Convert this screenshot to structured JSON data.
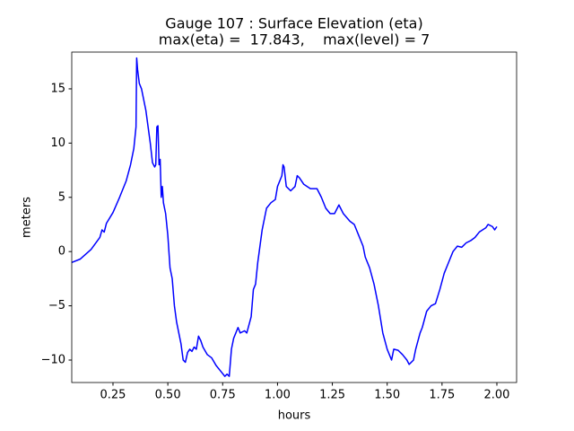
{
  "chart_data": {
    "type": "line",
    "title": "Gauge 107 : Surface Elevation (eta)",
    "subtitle": "max(eta) =  17.843,    max(level) = 7",
    "xlabel": "hours",
    "ylabel": "meters",
    "color": "#0000ff",
    "xlim": [
      0.062,
      2.09
    ],
    "ylim": [
      -12.07,
      18.39
    ],
    "xticks": [
      0.25,
      {
        "value": 0.5,
        "label": "0.50"
      },
      0.75,
      {
        "value": 1.0,
        "label": "1.00"
      },
      1.25,
      {
        "value": 1.5,
        "label": "1.50"
      },
      1.75,
      {
        "value": 2.0,
        "label": "2.00"
      }
    ],
    "yticks": [
      {
        "value": -10,
        "label": "−10"
      },
      {
        "value": -5,
        "label": "−5"
      },
      0,
      5,
      10,
      15
    ],
    "x": [
      0.062,
      0.1,
      0.15,
      0.19,
      0.2,
      0.21,
      0.22,
      0.25,
      0.28,
      0.31,
      0.33,
      0.345,
      0.355,
      0.358,
      0.362,
      0.37,
      0.38,
      0.4,
      0.42,
      0.43,
      0.44,
      0.445,
      0.45,
      0.455,
      0.46,
      0.465,
      0.47,
      0.475,
      0.48,
      0.49,
      0.5,
      0.51,
      0.52,
      0.53,
      0.54,
      0.56,
      0.57,
      0.58,
      0.59,
      0.6,
      0.61,
      0.62,
      0.63,
      0.64,
      0.65,
      0.66,
      0.68,
      0.7,
      0.72,
      0.74,
      0.76,
      0.77,
      0.78,
      0.79,
      0.8,
      0.82,
      0.83,
      0.85,
      0.86,
      0.88,
      0.89,
      0.9,
      0.91,
      0.92,
      0.93,
      0.95,
      0.97,
      0.99,
      1.0,
      1.02,
      1.025,
      1.03,
      1.04,
      1.06,
      1.08,
      1.09,
      1.1,
      1.12,
      1.15,
      1.18,
      1.2,
      1.22,
      1.24,
      1.26,
      1.28,
      1.3,
      1.33,
      1.35,
      1.37,
      1.39,
      1.4,
      1.42,
      1.44,
      1.46,
      1.48,
      1.5,
      1.52,
      1.53,
      1.55,
      1.57,
      1.59,
      1.6,
      1.62,
      1.63,
      1.65,
      1.66,
      1.68,
      1.7,
      1.72,
      1.74,
      1.76,
      1.78,
      1.8,
      1.82,
      1.84,
      1.86,
      1.88,
      1.9,
      1.92,
      1.95,
      1.96,
      1.98,
      1.99,
      2.0
    ],
    "values": [
      -1.0,
      -0.7,
      0.2,
      1.3,
      2.0,
      1.8,
      2.6,
      3.6,
      5.0,
      6.5,
      8.0,
      9.5,
      11.5,
      17.843,
      16.8,
      15.5,
      15.0,
      13.0,
      10.0,
      8.2,
      7.8,
      8.0,
      11.5,
      11.6,
      8.0,
      8.5,
      5.0,
      6.0,
      4.5,
      3.5,
      1.5,
      -1.5,
      -2.5,
      -5.0,
      -6.5,
      -8.5,
      -10.0,
      -10.2,
      -9.3,
      -9.0,
      -9.2,
      -8.8,
      -9.0,
      -7.8,
      -8.2,
      -8.8,
      -9.5,
      -9.8,
      -10.5,
      -11.0,
      -11.5,
      -11.3,
      -11.5,
      -9.0,
      -8.0,
      -7.0,
      -7.5,
      -7.3,
      -7.5,
      -6.0,
      -3.5,
      -3.0,
      -1.0,
      0.5,
      2.0,
      4.0,
      4.5,
      4.8,
      6.0,
      7.0,
      8.0,
      7.8,
      6.0,
      5.6,
      6.0,
      7.0,
      6.8,
      6.2,
      5.8,
      5.8,
      5.0,
      4.0,
      3.5,
      3.5,
      4.3,
      3.5,
      2.8,
      2.5,
      1.5,
      0.5,
      -0.5,
      -1.5,
      -3.0,
      -5.0,
      -7.5,
      -9.0,
      -10.0,
      -9.0,
      -9.1,
      -9.5,
      -10.0,
      -10.4,
      -10.0,
      -9.0,
      -7.5,
      -7.0,
      -5.5,
      -5.0,
      -4.8,
      -3.5,
      -2.0,
      -1.0,
      0.0,
      0.5,
      0.4,
      0.8,
      1.0,
      1.3,
      1.8,
      2.2,
      2.5,
      2.3,
      2.0,
      2.3
    ]
  }
}
